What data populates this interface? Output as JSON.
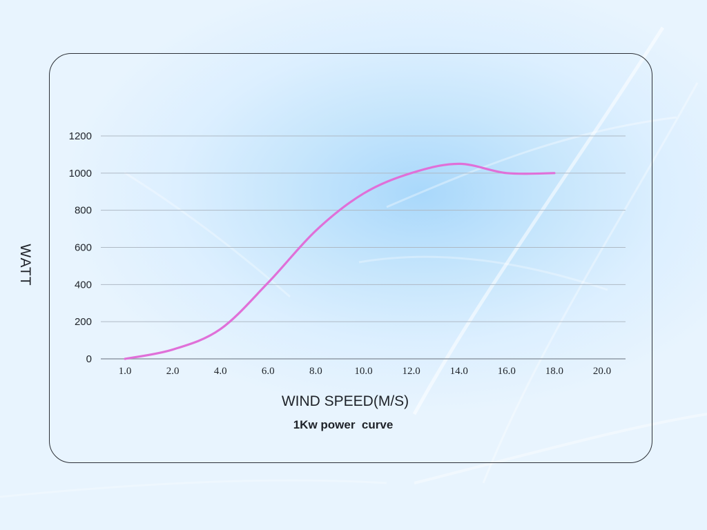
{
  "chart_data": {
    "type": "line",
    "title": "",
    "caption": "1Kw power  curve",
    "xlabel": "WIND SPEED(M/S)",
    "ylabel": "WATT",
    "x_ticks": [
      "1.0",
      "2.0",
      "4.0",
      "6.0",
      "8.0",
      "10.0",
      "12.0",
      "14.0",
      "16.0",
      "18.0",
      "20.0"
    ],
    "y_ticks": [
      "0",
      "200",
      "400",
      "600",
      "800",
      "1000",
      "1200"
    ],
    "ylim": [
      0,
      1200
    ],
    "grid": true,
    "line_color": "#e070d8",
    "series": [
      {
        "name": "",
        "points": [
          {
            "x": "1.0",
            "y": 0
          },
          {
            "x": "2.0",
            "y": 50
          },
          {
            "x": "4.0",
            "y": 160
          },
          {
            "x": "6.0",
            "y": 410
          },
          {
            "x": "8.0",
            "y": 690
          },
          {
            "x": "10.0",
            "y": 890
          },
          {
            "x": "12.0",
            "y": 1000
          },
          {
            "x": "14.0",
            "y": 1050
          },
          {
            "x": "16.0",
            "y": 1000
          },
          {
            "x": "18.0",
            "y": 1000
          }
        ]
      }
    ]
  }
}
